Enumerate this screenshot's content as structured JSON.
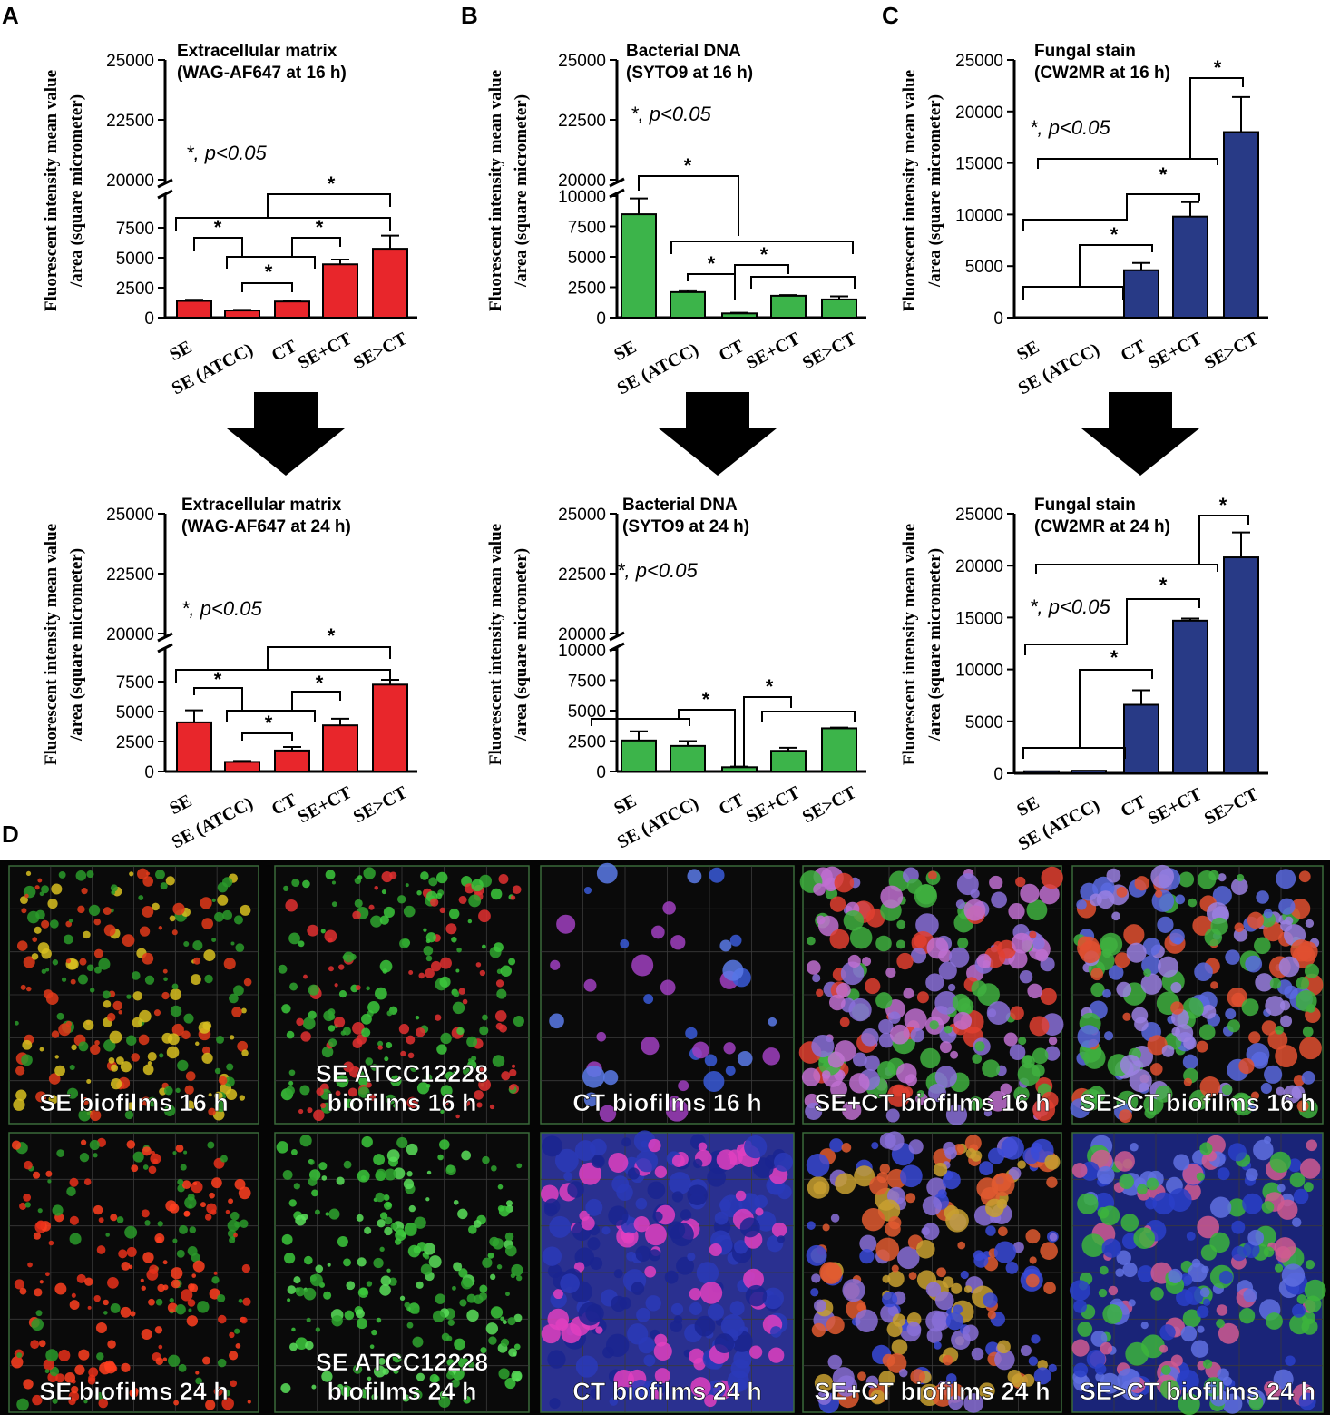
{
  "panels": {
    "A": "A",
    "B": "B",
    "C": "C",
    "D": "D"
  },
  "common": {
    "ylabel_line1": "Fluorescent intensity mean value",
    "ylabel_line2": "/area (square micrometer)",
    "pvalue": "*, p<0.05",
    "star": "*",
    "categories": [
      "SE",
      "SE (ATCC)",
      "CT",
      "SE+CT",
      "SE>CT"
    ]
  },
  "colors": {
    "ecm": "#e8262b",
    "dna": "#3cb44a",
    "fungal": "#283a86",
    "line": "#000000"
  },
  "chart_data": [
    {
      "id": "A16",
      "type": "bar",
      "panel": "A",
      "title": [
        "Extracellular matrix",
        "(WAG-AF647 at 16 h)"
      ],
      "categories": [
        "SE",
        "SE (ATCC)",
        "CT",
        "SE+CT",
        "SE>CT"
      ],
      "values": [
        1400,
        600,
        1350,
        4450,
        5750
      ],
      "errors": [
        100,
        50,
        80,
        400,
        1100
      ],
      "y_axis": "broken",
      "ylim_low": [
        0,
        10000
      ],
      "ylim_high": [
        20000,
        25000
      ],
      "ticks_low": [
        "0",
        "2500",
        "5000",
        "7500"
      ],
      "ticks_high": [
        "20000",
        "22500",
        "25000"
      ]
    },
    {
      "id": "B16",
      "type": "bar",
      "panel": "B",
      "title": [
        "Bacterial DNA",
        "(SYTO9 at 16 h)"
      ],
      "categories": [
        "SE",
        "SE (ATCC)",
        "CT",
        "SE+CT",
        "SE>CT"
      ],
      "values": [
        8500,
        2100,
        350,
        1800,
        1500
      ],
      "errors": [
        1300,
        150,
        50,
        60,
        250
      ],
      "y_axis": "broken",
      "ylim_low": [
        0,
        10000
      ],
      "ylim_high": [
        20000,
        25000
      ],
      "ticks_low": [
        "0",
        "2500",
        "5000",
        "7500",
        "10000"
      ],
      "ticks_high": [
        "20000",
        "22500",
        "25000"
      ]
    },
    {
      "id": "C16",
      "type": "bar",
      "panel": "C",
      "title": [
        "Fungal stain",
        "(CW2MR at 16 h)"
      ],
      "categories": [
        "SE",
        "SE (ATCC)",
        "CT",
        "SE+CT",
        "SE>CT"
      ],
      "values": [
        0,
        0,
        4600,
        9800,
        18000
      ],
      "errors": [
        0,
        0,
        700,
        1400,
        3400
      ],
      "y_axis": "linear",
      "ylim": [
        0,
        25000
      ],
      "ticks": [
        "0",
        "5000",
        "10000",
        "15000",
        "20000",
        "25000"
      ]
    },
    {
      "id": "A24",
      "type": "bar",
      "panel": "A",
      "title": [
        "Extracellular matrix",
        "(WAG-AF647 at 24 h)"
      ],
      "categories": [
        "SE",
        "SE (ATCC)",
        "CT",
        "SE+CT",
        "SE>CT"
      ],
      "values": [
        4100,
        800,
        1750,
        3850,
        7250
      ],
      "errors": [
        1000,
        80,
        300,
        550,
        400
      ],
      "y_axis": "broken",
      "ylim_low": [
        0,
        10000
      ],
      "ylim_high": [
        20000,
        25000
      ],
      "ticks_low": [
        "0",
        "2500",
        "5000",
        "7500"
      ],
      "ticks_high": [
        "20000",
        "22500",
        "25000"
      ]
    },
    {
      "id": "B24",
      "type": "bar",
      "panel": "B",
      "title": [
        "Bacterial DNA",
        "(SYTO9 at 24 h)"
      ],
      "categories": [
        "SE",
        "SE (ATCC)",
        "CT",
        "SE+CT",
        "SE>CT"
      ],
      "values": [
        2550,
        2100,
        350,
        1700,
        3550
      ],
      "errors": [
        750,
        400,
        50,
        250,
        60
      ],
      "y_axis": "broken",
      "ylim_low": [
        0,
        10000
      ],
      "ylim_high": [
        20000,
        25000
      ],
      "ticks_low": [
        "0",
        "2500",
        "5000",
        "7500",
        "10000"
      ],
      "ticks_high": [
        "20000",
        "22500",
        "25000"
      ]
    },
    {
      "id": "C24",
      "type": "bar",
      "panel": "C",
      "title": [
        "Fungal stain",
        "(CW2MR at 24 h)"
      ],
      "categories": [
        "SE",
        "SE (ATCC)",
        "CT",
        "SE+CT",
        "SE>CT"
      ],
      "values": [
        200,
        250,
        6600,
        14700,
        20800
      ],
      "errors": [
        0,
        0,
        1400,
        200,
        2400
      ],
      "y_axis": "linear",
      "ylim": [
        0,
        25000
      ],
      "ticks": [
        "0",
        "5000",
        "10000",
        "15000",
        "20000",
        "25000"
      ]
    }
  ],
  "micrographs": {
    "row1": [
      "SE biofilms 16 h",
      "SE ATCC12228\nbiofilms 16 h",
      "CT biofilms 16 h",
      "SE+CT biofilms 16 h",
      "SE>CT biofilms 16 h"
    ],
    "row2": [
      "SE biofilms 24 h",
      "SE ATCC12228\nbiofilms 24 h",
      "CT biofilms 24 h",
      "SE+CT biofilms 24 h",
      "SE>CT biofilms 24 h"
    ]
  }
}
